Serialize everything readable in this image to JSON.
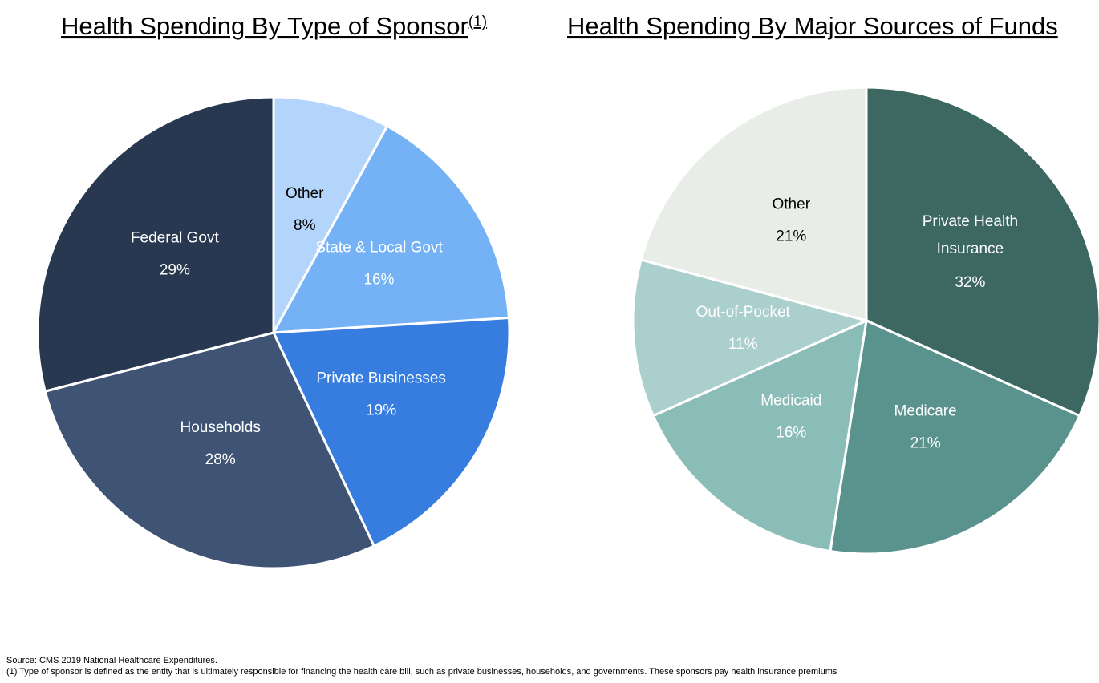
{
  "chart_data": [
    {
      "type": "pie",
      "title": "Health Spending By Type of Sponsor",
      "title_note": "(1)",
      "categories": [
        "Other",
        "State & Local Govt",
        "Private Businesses",
        "Households",
        "Federal Govt"
      ],
      "values": [
        8,
        16,
        19,
        28,
        29
      ],
      "value_labels": [
        "8%",
        "16%",
        "19%",
        "28%",
        "29%"
      ],
      "colors": [
        "#b3d4fb",
        "#75b2f5",
        "#377de0",
        "#3f5374",
        "#283850"
      ]
    },
    {
      "type": "pie",
      "title": "Health Spending By Major Sources of Funds",
      "categories": [
        "Private Health Insurance",
        "Medicare",
        "Medicaid",
        "Out-of-Pocket",
        "Other"
      ],
      "values": [
        32,
        21,
        16,
        11,
        21
      ],
      "value_labels": [
        "32%",
        "21%",
        "16%",
        "11%",
        "21%"
      ],
      "colors": [
        "#3d6862",
        "#5a938d",
        "#8bbdb8",
        "#aacfcd",
        "#e8ede8"
      ]
    }
  ],
  "footnotes": [
    "Source: CMS 2019 National Healthcare Expenditures.",
    "(1) Type of sponsor is defined as the entity that is ultimately responsible for financing the health care bill, such as private businesses, households, and governments. These sponsors pay health insurance premiums"
  ]
}
